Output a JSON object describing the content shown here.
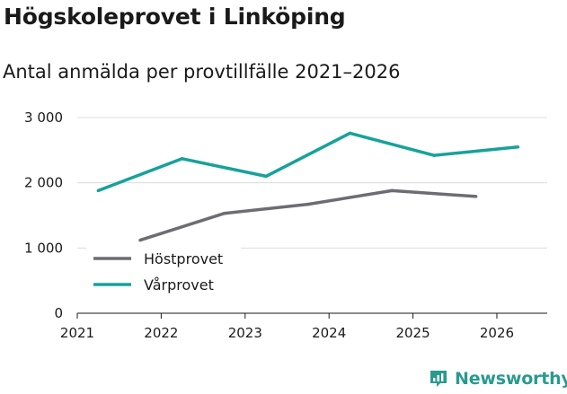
{
  "header": {
    "title": "Högskoleprovet i Linköping",
    "subtitle": "Antal anmälda per provtillfälle 2021–2026"
  },
  "brand": {
    "name": "Newsworthy",
    "color": "#2a9a8f"
  },
  "chart_data": {
    "type": "line",
    "title": "Högskoleprovet i Linköping",
    "subtitle": "Antal anmälda per provtillfälle 2021–2026",
    "xlabel": "",
    "ylabel": "",
    "xlim": [
      2021,
      2026.6
    ],
    "ylim": [
      0,
      3000
    ],
    "x_ticks": [
      2021,
      2022,
      2023,
      2024,
      2025,
      2026
    ],
    "x_tick_labels": [
      "2021",
      "2022",
      "2023",
      "2024",
      "2025",
      "2026"
    ],
    "y_ticks": [
      0,
      1000,
      2000,
      3000
    ],
    "y_tick_labels": [
      "0",
      "1 000",
      "2 000",
      "3 000"
    ],
    "grid": true,
    "legend_position": "bottom-left",
    "series": [
      {
        "name": "Höstprovet",
        "color": "#6e6c73",
        "x": [
          2021.75,
          2022.75,
          2023.75,
          2024.75,
          2025.75
        ],
        "values": [
          1120,
          1530,
          1670,
          1880,
          1790
        ]
      },
      {
        "name": "Vårprovet",
        "color": "#17a29a",
        "x": [
          2021.25,
          2022.25,
          2023.25,
          2024.25,
          2025.25,
          2026.25
        ],
        "values": [
          1880,
          2370,
          2100,
          2760,
          2420,
          2550
        ]
      }
    ]
  }
}
